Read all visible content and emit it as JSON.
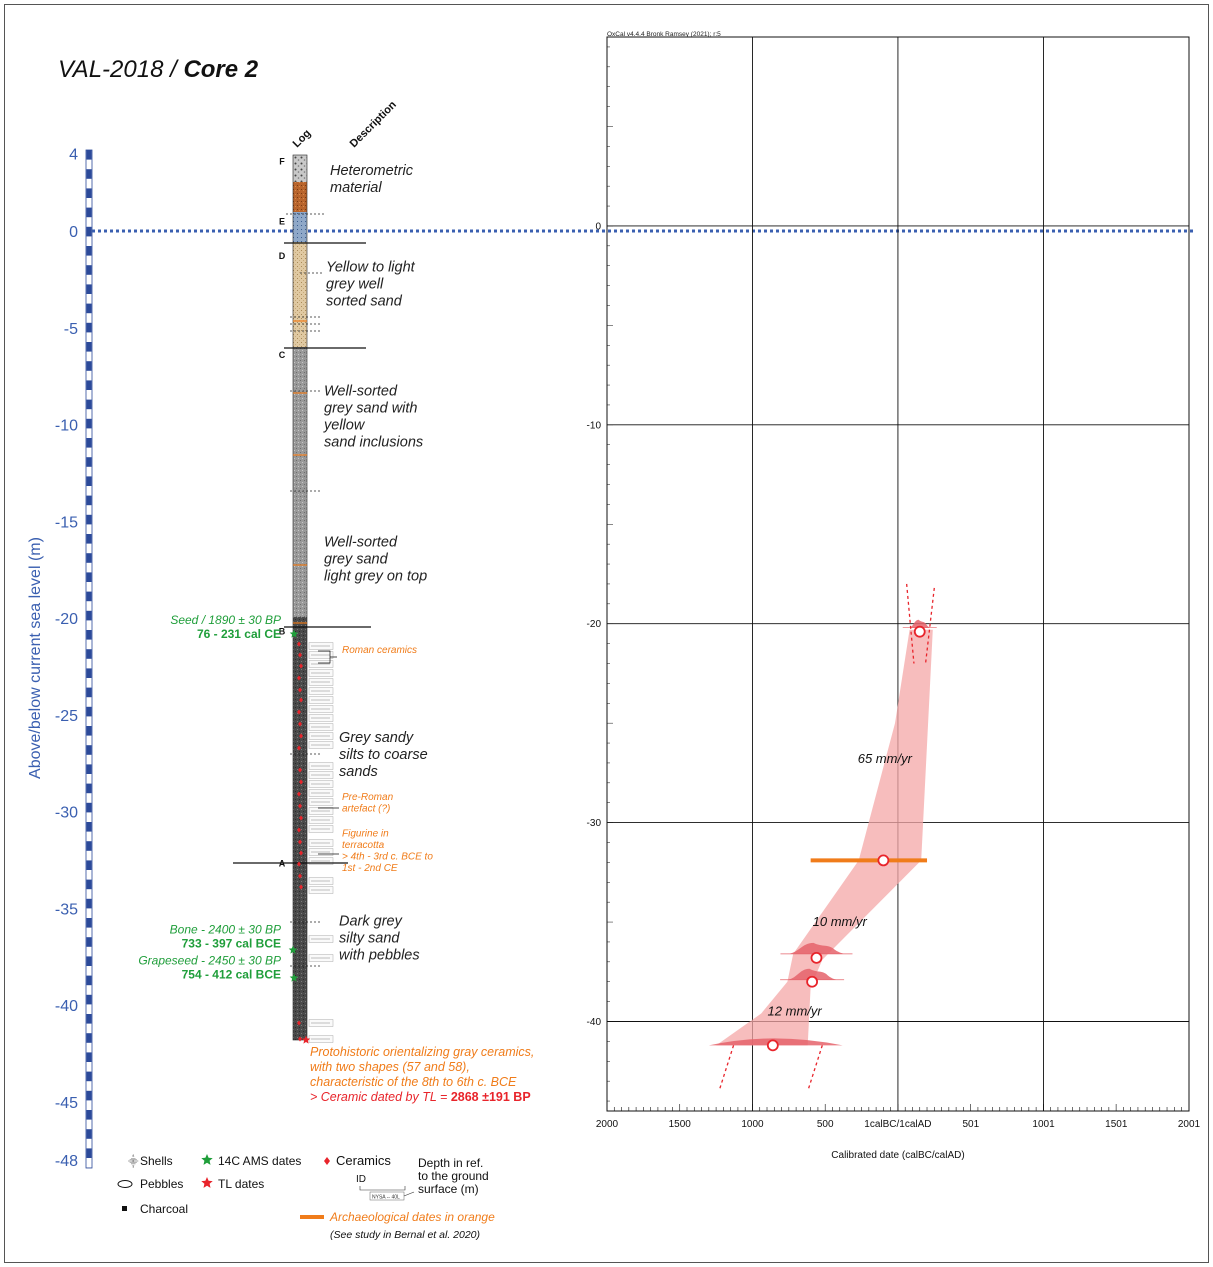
{
  "title": {
    "prefix": "VAL-2018 / ",
    "bold": "Core 2"
  },
  "left_axis": {
    "label": "Above/below current sea level (m)",
    "ticks": [
      {
        "label": "4",
        "value": 4
      },
      {
        "label": "0",
        "value": 0
      },
      {
        "label": "-5",
        "value": -5
      },
      {
        "label": "-10",
        "value": -10
      },
      {
        "label": "-15",
        "value": -15
      },
      {
        "label": "-20",
        "value": -20
      },
      {
        "label": "-25",
        "value": -25
      },
      {
        "label": "-30",
        "value": -30
      },
      {
        "label": "-35",
        "value": -35
      },
      {
        "label": "-40",
        "value": -40
      },
      {
        "label": "-45",
        "value": -45
      },
      {
        "label": "-48",
        "value": -48
      }
    ],
    "sea_level_color": "#3a5fb0",
    "scale_color": "#2c4a9a"
  },
  "column_headers": {
    "log": "Log",
    "description": "Description"
  },
  "units": [
    {
      "letter": "F",
      "depth": 3.6
    },
    {
      "letter": "E",
      "depth": 0.5
    },
    {
      "letter": "D",
      "depth": -1.3
    },
    {
      "letter": "C",
      "depth": -6.4
    },
    {
      "letter": "B",
      "depth": -20.7
    },
    {
      "letter": "A",
      "depth": -32.7
    }
  ],
  "descriptions": [
    {
      "lines": [
        "Heterometric",
        "material"
      ],
      "depth": 2.9
    },
    {
      "lines": [
        "Yellow to light",
        "grey well",
        "sorted sand"
      ],
      "depth": -2.1
    },
    {
      "lines": [
        "Well-sorted",
        "grey sand with",
        "yellow",
        "sand inclusions"
      ],
      "depth": -8.5
    },
    {
      "lines": [
        "Well-sorted",
        "grey sand",
        "light grey on top"
      ],
      "depth": -16.3
    },
    {
      "lines": [
        "Grey sandy",
        "silts to coarse",
        "sands"
      ],
      "depth": -26.4
    },
    {
      "lines": [
        "Dark grey",
        "silty sand",
        "with pebbles"
      ],
      "depth": -35.9
    }
  ],
  "dates_14c": [
    {
      "material": "Seed / 1890 ± 30 BP",
      "range": "76 - 231 cal CE",
      "depth": -20.3
    },
    {
      "material": "Bone - 2400 ± 30 BP",
      "range": "733 - 397 cal BCE",
      "depth": -36.3
    },
    {
      "material": "Grapeseed - 2450 ± 30 BP",
      "range": "754 - 412 cal BCE",
      "depth": -37.9
    }
  ],
  "archaeo_notes": [
    {
      "lines": [
        "Roman ceramics"
      ],
      "depth": -21.8
    },
    {
      "lines": [
        "Pre-Roman",
        "artefact (?)"
      ],
      "depth": -29.4
    },
    {
      "lines": [
        "Figurine in",
        "terracotta",
        "> 4th - 3rd c. BCE to",
        "1st - 2nd CE"
      ],
      "depth": -31.3
    }
  ],
  "tl_note": {
    "lines": [
      "Protohistoric orientalizing gray ceramics,",
      "with two shapes (57 and 58),",
      "characteristic of the 8th to 6th c. BCE"
    ],
    "tl_prefix": "> Ceramic dated by TL = ",
    "tl_value": "2868 ±191 BP"
  },
  "legend": {
    "shells": "Shells",
    "pebbles": "Pebbles",
    "charcoal": "Charcoal",
    "ams": "14C AMS dates",
    "tl": "TL dates",
    "ceramics": "Ceramics",
    "id_label": "ID",
    "depth_label": [
      "Depth in ref.",
      "to the ground",
      "surface (m)"
    ],
    "id_sample": "NYSA -- 40L",
    "archaeo": "Archaeological dates in orange",
    "study": "(See study in Bernal et al. 2020)"
  },
  "colors": {
    "green": "#1f9e3a",
    "orange": "#f07c1a",
    "red": "#e8242b",
    "pink_band": "#f4a7a7",
    "blue": "#3a5fb0"
  },
  "oxcal": {
    "header": "OxCal v4.4.4 Bronk Ramsey (2021); r:5",
    "xlabel": "Calibrated date (calBC/calAD)",
    "x_ticks": [
      "2000",
      "1500",
      "1000",
      "500",
      "1calBC/1calAD",
      "501",
      "1001",
      "1501",
      "2001"
    ],
    "y_ticks": [
      "0",
      "-10",
      "-20",
      "-30",
      "-40"
    ],
    "rates": [
      "65 mm/yr",
      "10 mm/yr",
      "12 mm/yr"
    ]
  },
  "chart_data": {
    "type": "scatter",
    "title": "",
    "xlabel": "Calibrated date (calBC/calAD)",
    "ylabel": "",
    "xlim": [
      -2000,
      2001
    ],
    "ylim": [
      -44.5,
      9.5
    ],
    "y_ticks": [
      0,
      -10,
      -20,
      -30,
      -40
    ],
    "grid": true,
    "series": [
      {
        "name": "14C AMS dates",
        "points": [
          {
            "x": 150,
            "y": -20.4
          },
          {
            "x": -560,
            "y": -36.8
          },
          {
            "x": -590,
            "y": -38.0
          }
        ]
      },
      {
        "name": "Archaeological dates in orange",
        "points": [
          {
            "x": -100,
            "y": -31.9,
            "from": -600,
            "to": 200
          }
        ]
      },
      {
        "name": "TL dates",
        "points": [
          {
            "x": -860,
            "y": -41.2
          }
        ]
      }
    ],
    "sedimentation_rates": [
      {
        "label": "65 mm/yr",
        "y": -27.0
      },
      {
        "label": "10 mm/yr",
        "y": -35.2
      },
      {
        "label": "12 mm/yr",
        "y": -39.7
      }
    ]
  }
}
